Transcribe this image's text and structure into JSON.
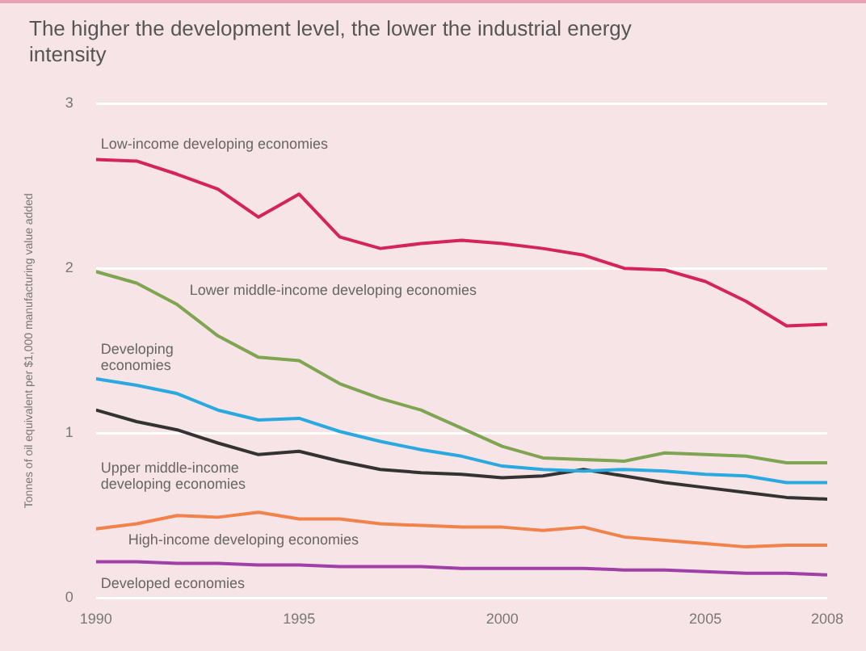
{
  "chart_data": {
    "type": "line",
    "title": "The higher the development level, the lower the industrial energy intensity",
    "ylabel": "Tonnes of oil equivalent per $1,000 manufacturing value added",
    "x": [
      1990,
      1991,
      1992,
      1993,
      1994,
      1995,
      1996,
      1997,
      1998,
      1999,
      2000,
      2001,
      2002,
      2003,
      2004,
      2005,
      2006,
      2007,
      2008
    ],
    "xlim": [
      1990,
      2008
    ],
    "xticks": [
      1990,
      1995,
      2000,
      2005,
      2008
    ],
    "ylim": [
      0,
      3
    ],
    "yticks": [
      0,
      1,
      2,
      3
    ],
    "grid": "y",
    "legend": false,
    "marker": "none",
    "line_style": "solid",
    "series": [
      {
        "name": "Low-income developing economies",
        "color": "#d4245a",
        "values": [
          2.66,
          2.65,
          2.57,
          2.48,
          2.31,
          2.45,
          2.19,
          2.12,
          2.15,
          2.17,
          2.15,
          2.12,
          2.08,
          2.0,
          1.99,
          1.92,
          1.8,
          1.65,
          1.66
        ]
      },
      {
        "name": "Lower middle-income developing economies",
        "color": "#7fa552",
        "values": [
          1.98,
          1.91,
          1.78,
          1.59,
          1.46,
          1.44,
          1.3,
          1.21,
          1.14,
          1.03,
          0.92,
          0.85,
          0.84,
          0.83,
          0.88,
          0.87,
          0.86,
          0.82,
          0.82
        ]
      },
      {
        "name": "Developing economies",
        "color": "#29a9df",
        "values": [
          1.33,
          1.29,
          1.24,
          1.14,
          1.08,
          1.09,
          1.01,
          0.95,
          0.9,
          0.86,
          0.8,
          0.78,
          0.77,
          0.78,
          0.77,
          0.75,
          0.74,
          0.7,
          0.7
        ]
      },
      {
        "name": "Upper middle-income developing economies",
        "color": "#333333",
        "values": [
          1.14,
          1.07,
          1.02,
          0.94,
          0.87,
          0.89,
          0.83,
          0.78,
          0.76,
          0.75,
          0.73,
          0.74,
          0.78,
          0.74,
          0.7,
          0.67,
          0.64,
          0.61,
          0.6
        ]
      },
      {
        "name": "High-income developing economies",
        "color": "#f0824a",
        "values": [
          0.42,
          0.45,
          0.5,
          0.49,
          0.52,
          0.48,
          0.48,
          0.45,
          0.44,
          0.43,
          0.43,
          0.41,
          0.43,
          0.37,
          0.35,
          0.33,
          0.31,
          0.32,
          0.32
        ]
      },
      {
        "name": "Developed economies",
        "color": "#a03fa6",
        "values": [
          0.22,
          0.22,
          0.21,
          0.21,
          0.2,
          0.2,
          0.19,
          0.19,
          0.19,
          0.18,
          0.18,
          0.18,
          0.18,
          0.17,
          0.17,
          0.16,
          0.15,
          0.15,
          0.14
        ]
      }
    ]
  }
}
